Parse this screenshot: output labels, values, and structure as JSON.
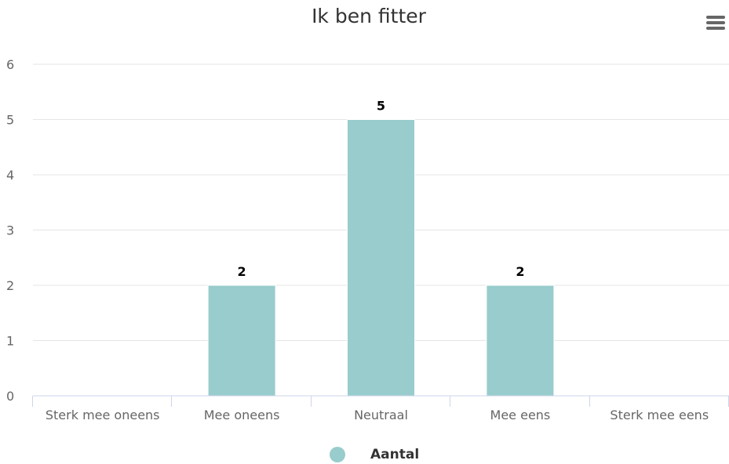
{
  "chart_data": {
    "type": "bar",
    "title": "Ik ben fitter",
    "categories": [
      "Sterk mee oneens",
      "Mee oneens",
      "Neutraal",
      "Mee eens",
      "Sterk mee eens"
    ],
    "series": [
      {
        "name": "Aantal",
        "values": [
          0,
          2,
          5,
          2,
          0
        ],
        "color": "#99cccc"
      }
    ],
    "ylim": [
      0,
      6
    ],
    "yticks": [
      0,
      1,
      2,
      3,
      4,
      5,
      6
    ],
    "grid": true,
    "data_labels": true,
    "legend_position": "bottom-center"
  },
  "colors": {
    "grid": "#e6e6e6",
    "axis": "#ccd6eb",
    "bar": "#99cccc"
  },
  "icons": {
    "menu": "hamburger-icon"
  }
}
